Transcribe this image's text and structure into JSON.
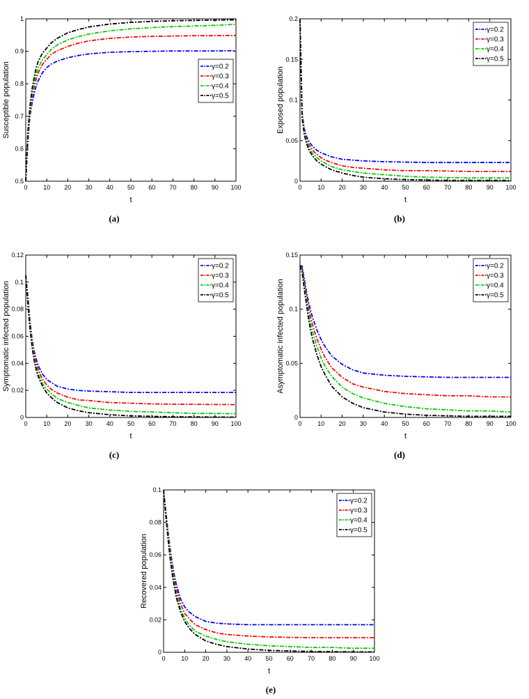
{
  "chart_data": [
    {
      "type": "line",
      "panel_label": "(a)",
      "xlabel": "t",
      "ylabel": "Susceptible population",
      "xlim": [
        0,
        100
      ],
      "ylim": [
        0.5,
        1
      ],
      "xticks": [
        "0",
        "10",
        "20",
        "30",
        "40",
        "50",
        "60",
        "70",
        "80",
        "90",
        "100"
      ],
      "yticks": [
        "0.5",
        "0.6",
        "0.7",
        "0.8",
        "0.9",
        "1"
      ],
      "legend_position": "right",
      "grid": false,
      "x": [
        0,
        1,
        2,
        3,
        4,
        5,
        6,
        8,
        10,
        12,
        15,
        20,
        25,
        30,
        40,
        50,
        60,
        70,
        80,
        90,
        100
      ],
      "series": [
        {
          "name": "γ=0.2",
          "color": "#0000ff",
          "values": [
            0.5,
            0.62,
            0.7,
            0.74,
            0.77,
            0.795,
            0.81,
            0.835,
            0.85,
            0.86,
            0.87,
            0.88,
            0.887,
            0.892,
            0.897,
            0.899,
            0.9,
            0.901,
            0.901,
            0.901,
            0.902
          ]
        },
        {
          "name": "γ=0.3",
          "color": "#ff0000",
          "values": [
            0.5,
            0.63,
            0.71,
            0.755,
            0.79,
            0.815,
            0.835,
            0.86,
            0.875,
            0.89,
            0.902,
            0.915,
            0.925,
            0.932,
            0.94,
            0.944,
            0.946,
            0.947,
            0.948,
            0.948,
            0.949
          ]
        },
        {
          "name": "γ=0.4",
          "color": "#00cc00",
          "values": [
            0.5,
            0.64,
            0.72,
            0.77,
            0.8,
            0.83,
            0.85,
            0.875,
            0.89,
            0.905,
            0.92,
            0.935,
            0.945,
            0.953,
            0.963,
            0.969,
            0.973,
            0.976,
            0.978,
            0.98,
            0.983
          ]
        },
        {
          "name": "γ=0.5",
          "color": "#000000",
          "values": [
            0.5,
            0.65,
            0.73,
            0.785,
            0.82,
            0.85,
            0.87,
            0.895,
            0.91,
            0.925,
            0.94,
            0.957,
            0.967,
            0.975,
            0.984,
            0.989,
            0.992,
            0.994,
            0.995,
            0.996,
            0.997
          ]
        }
      ]
    },
    {
      "type": "line",
      "panel_label": "(b)",
      "xlabel": "t",
      "ylabel": "Exposed population",
      "xlim": [
        0,
        100
      ],
      "ylim": [
        0,
        0.2
      ],
      "xticks": [
        "0",
        "10",
        "20",
        "30",
        "40",
        "50",
        "60",
        "70",
        "80",
        "90",
        "100"
      ],
      "yticks": [
        "0",
        "0.05",
        "0.1",
        "0.15",
        "0.2"
      ],
      "legend_position": "top-right",
      "grid": false,
      "x": [
        0,
        1,
        2,
        3,
        4,
        5,
        6,
        8,
        10,
        12,
        15,
        20,
        25,
        30,
        40,
        50,
        60,
        70,
        80,
        90,
        100
      ],
      "series": [
        {
          "name": "γ=0.2",
          "color": "#0000ff",
          "values": [
            0.2,
            0.085,
            0.065,
            0.056,
            0.05,
            0.046,
            0.043,
            0.038,
            0.035,
            0.033,
            0.03,
            0.027,
            0.026,
            0.025,
            0.024,
            0.0235,
            0.023,
            0.023,
            0.023,
            0.023,
            0.023
          ]
        },
        {
          "name": "γ=0.3",
          "color": "#ff0000",
          "values": [
            0.2,
            0.082,
            0.062,
            0.052,
            0.046,
            0.042,
            0.038,
            0.033,
            0.029,
            0.026,
            0.023,
            0.019,
            0.017,
            0.016,
            0.014,
            0.013,
            0.013,
            0.0125,
            0.012,
            0.012,
            0.012
          ]
        },
        {
          "name": "γ=0.4",
          "color": "#00cc00",
          "values": [
            0.2,
            0.08,
            0.06,
            0.05,
            0.043,
            0.038,
            0.034,
            0.029,
            0.025,
            0.022,
            0.018,
            0.014,
            0.012,
            0.01,
            0.008,
            0.006,
            0.005,
            0.0045,
            0.004,
            0.004,
            0.004
          ]
        },
        {
          "name": "γ=0.5",
          "color": "#000000",
          "values": [
            0.2,
            0.078,
            0.058,
            0.047,
            0.04,
            0.035,
            0.031,
            0.025,
            0.021,
            0.018,
            0.014,
            0.01,
            0.007,
            0.005,
            0.003,
            0.002,
            0.0015,
            0.001,
            0.001,
            0.001,
            0.001
          ]
        }
      ]
    },
    {
      "type": "line",
      "panel_label": "(c)",
      "xlabel": "t",
      "ylabel": "Symptomatic infected population",
      "xlim": [
        0,
        100
      ],
      "ylim": [
        0,
        0.12
      ],
      "xticks": [
        "0",
        "10",
        "20",
        "30",
        "40",
        "50",
        "60",
        "70",
        "80",
        "90",
        "100"
      ],
      "yticks": [
        "0",
        "0.02",
        "0.04",
        "0.06",
        "0.08",
        "0.1",
        "0.12"
      ],
      "legend_position": "top-right",
      "grid": false,
      "x": [
        0,
        1,
        2,
        3,
        4,
        5,
        6,
        8,
        10,
        12,
        15,
        20,
        25,
        30,
        40,
        50,
        60,
        70,
        80,
        90,
        100
      ],
      "series": [
        {
          "name": "γ=0.2",
          "color": "#0000ff",
          "values": [
            0.105,
            0.09,
            0.072,
            0.058,
            0.049,
            0.043,
            0.038,
            0.032,
            0.028,
            0.026,
            0.023,
            0.021,
            0.02,
            0.0195,
            0.019,
            0.0185,
            0.0185,
            0.0185,
            0.0185,
            0.0185,
            0.0185
          ]
        },
        {
          "name": "γ=0.3",
          "color": "#ff0000",
          "values": [
            0.105,
            0.088,
            0.07,
            0.056,
            0.046,
            0.04,
            0.035,
            0.028,
            0.024,
            0.021,
            0.018,
            0.015,
            0.013,
            0.0125,
            0.011,
            0.0105,
            0.01,
            0.0098,
            0.0097,
            0.0096,
            0.0095
          ]
        },
        {
          "name": "γ=0.4",
          "color": "#00cc00",
          "values": [
            0.105,
            0.086,
            0.068,
            0.054,
            0.044,
            0.037,
            0.032,
            0.025,
            0.021,
            0.018,
            0.014,
            0.011,
            0.009,
            0.007,
            0.0055,
            0.0045,
            0.004,
            0.0035,
            0.003,
            0.003,
            0.0028
          ]
        },
        {
          "name": "γ=0.5",
          "color": "#000000",
          "values": [
            0.105,
            0.084,
            0.066,
            0.052,
            0.042,
            0.035,
            0.03,
            0.023,
            0.018,
            0.015,
            0.011,
            0.007,
            0.005,
            0.0035,
            0.002,
            0.0012,
            0.0008,
            0.0005,
            0.0004,
            0.0003,
            0.0002
          ]
        }
      ]
    },
    {
      "type": "line",
      "panel_label": "(d)",
      "xlabel": "t",
      "ylabel": "Asymptomatic infected population",
      "xlim": [
        0,
        100
      ],
      "ylim": [
        0,
        0.15
      ],
      "xticks": [
        "0",
        "10",
        "20",
        "30",
        "40",
        "50",
        "60",
        "70",
        "80",
        "90",
        "100"
      ],
      "yticks": [
        "0",
        "0.05",
        "0.1",
        "0.15"
      ],
      "legend_position": "top-right",
      "grid": false,
      "x": [
        0,
        1,
        2,
        3,
        4,
        5,
        6,
        8,
        10,
        12,
        15,
        20,
        25,
        30,
        40,
        50,
        60,
        70,
        80,
        90,
        100
      ],
      "series": [
        {
          "name": "γ=0.2",
          "color": "#0000ff",
          "values": [
            0.14,
            0.14,
            0.128,
            0.117,
            0.107,
            0.099,
            0.092,
            0.081,
            0.072,
            0.065,
            0.057,
            0.049,
            0.044,
            0.041,
            0.039,
            0.038,
            0.0375,
            0.037,
            0.037,
            0.037,
            0.037
          ]
        },
        {
          "name": "γ=0.3",
          "color": "#ff0000",
          "values": [
            0.14,
            0.138,
            0.125,
            0.113,
            0.102,
            0.093,
            0.085,
            0.073,
            0.063,
            0.055,
            0.046,
            0.037,
            0.031,
            0.028,
            0.024,
            0.022,
            0.021,
            0.02,
            0.02,
            0.019,
            0.019
          ]
        },
        {
          "name": "γ=0.4",
          "color": "#00cc00",
          "values": [
            0.14,
            0.136,
            0.122,
            0.109,
            0.097,
            0.087,
            0.079,
            0.066,
            0.055,
            0.047,
            0.038,
            0.028,
            0.022,
            0.018,
            0.013,
            0.01,
            0.008,
            0.007,
            0.006,
            0.006,
            0.005
          ]
        },
        {
          "name": "γ=0.5",
          "color": "#000000",
          "values": [
            0.14,
            0.134,
            0.119,
            0.105,
            0.092,
            0.081,
            0.072,
            0.058,
            0.047,
            0.039,
            0.029,
            0.019,
            0.013,
            0.009,
            0.005,
            0.003,
            0.002,
            0.0015,
            0.001,
            0.001,
            0.001
          ]
        }
      ]
    },
    {
      "type": "line",
      "panel_label": "(e)",
      "xlabel": "t",
      "ylabel": "Recovered population",
      "xlim": [
        0,
        100
      ],
      "ylim": [
        0,
        0.1
      ],
      "xticks": [
        "0",
        "10",
        "20",
        "30",
        "40",
        "50",
        "60",
        "70",
        "80",
        "90",
        "100"
      ],
      "yticks": [
        "0",
        "0.02",
        "0.04",
        "0.06",
        "0.08",
        "0.1"
      ],
      "legend_position": "top-right",
      "grid": false,
      "x": [
        0,
        1,
        2,
        3,
        4,
        5,
        6,
        8,
        10,
        12,
        15,
        20,
        25,
        30,
        40,
        50,
        60,
        70,
        80,
        90,
        100
      ],
      "series": [
        {
          "name": "γ=0.2",
          "color": "#0000ff",
          "values": [
            0.1,
            0.088,
            0.076,
            0.065,
            0.056,
            0.048,
            0.042,
            0.033,
            0.028,
            0.025,
            0.022,
            0.019,
            0.018,
            0.0175,
            0.017,
            0.017,
            0.017,
            0.017,
            0.017,
            0.017,
            0.017
          ]
        },
        {
          "name": "γ=0.3",
          "color": "#ff0000",
          "values": [
            0.1,
            0.087,
            0.074,
            0.063,
            0.053,
            0.045,
            0.039,
            0.03,
            0.024,
            0.021,
            0.017,
            0.014,
            0.012,
            0.011,
            0.01,
            0.0095,
            0.0092,
            0.009,
            0.009,
            0.009,
            0.009
          ]
        },
        {
          "name": "γ=0.4",
          "color": "#00cc00",
          "values": [
            0.1,
            0.086,
            0.073,
            0.061,
            0.051,
            0.043,
            0.036,
            0.027,
            0.021,
            0.017,
            0.013,
            0.01,
            0.008,
            0.0065,
            0.005,
            0.004,
            0.0035,
            0.003,
            0.003,
            0.0025,
            0.0025
          ]
        },
        {
          "name": "γ=0.5",
          "color": "#000000",
          "values": [
            0.1,
            0.085,
            0.071,
            0.059,
            0.049,
            0.041,
            0.034,
            0.025,
            0.019,
            0.015,
            0.011,
            0.007,
            0.005,
            0.0035,
            0.002,
            0.0012,
            0.0008,
            0.0005,
            0.0004,
            0.0003,
            0.0002
          ]
        }
      ]
    }
  ]
}
